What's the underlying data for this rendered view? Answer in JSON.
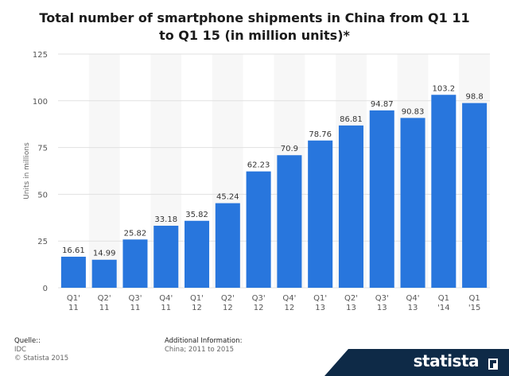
{
  "title": "Total number of smartphone shipments in China from Q1 11 to Q1 15 (in million units)*",
  "footer": {
    "source_heading": "Quelle::",
    "source_name": "IDC",
    "copyright": "© Statista 2015",
    "info_heading": "Additional Information:",
    "info_text": "China; 2011 to 2015"
  },
  "brand": {
    "name": "statista",
    "color": "#0e2a47"
  },
  "colors": {
    "bar": "#2876dd",
    "band": "#f7f7f7",
    "grid": "#e1e1e1"
  },
  "chart_data": {
    "type": "bar",
    "title": "Total number of smartphone shipments in China from Q1 11 to Q1 15 (in million units)*",
    "ylabel": "Units in millions",
    "xlabel": "",
    "ylim": [
      0,
      125
    ],
    "yticks": [
      0,
      25,
      50,
      75,
      100,
      125
    ],
    "grid": true,
    "categories": [
      [
        "Q1'",
        "11"
      ],
      [
        "Q2'",
        "11"
      ],
      [
        "Q3'",
        "11"
      ],
      [
        "Q4'",
        "11"
      ],
      [
        "Q1'",
        "12"
      ],
      [
        "Q2'",
        "12"
      ],
      [
        "Q3'",
        "12"
      ],
      [
        "Q4'",
        "12"
      ],
      [
        "Q1'",
        "13"
      ],
      [
        "Q2'",
        "13"
      ],
      [
        "Q3'",
        "13"
      ],
      [
        "Q4'",
        "13"
      ],
      [
        "Q1",
        "'14"
      ],
      [
        "Q1",
        "'15"
      ]
    ],
    "value_labels": [
      "16.61",
      "14.99",
      "25.82",
      "33.18",
      "35.82",
      "45.24",
      "62.23",
      "70.9",
      "78.76",
      "86.81",
      "94.87",
      "90.83",
      "103.2",
      "98.8"
    ],
    "values": [
      16.61,
      14.99,
      25.82,
      33.18,
      35.82,
      45.24,
      62.23,
      70.9,
      78.76,
      86.81,
      94.87,
      90.83,
      103.2,
      98.8
    ]
  }
}
